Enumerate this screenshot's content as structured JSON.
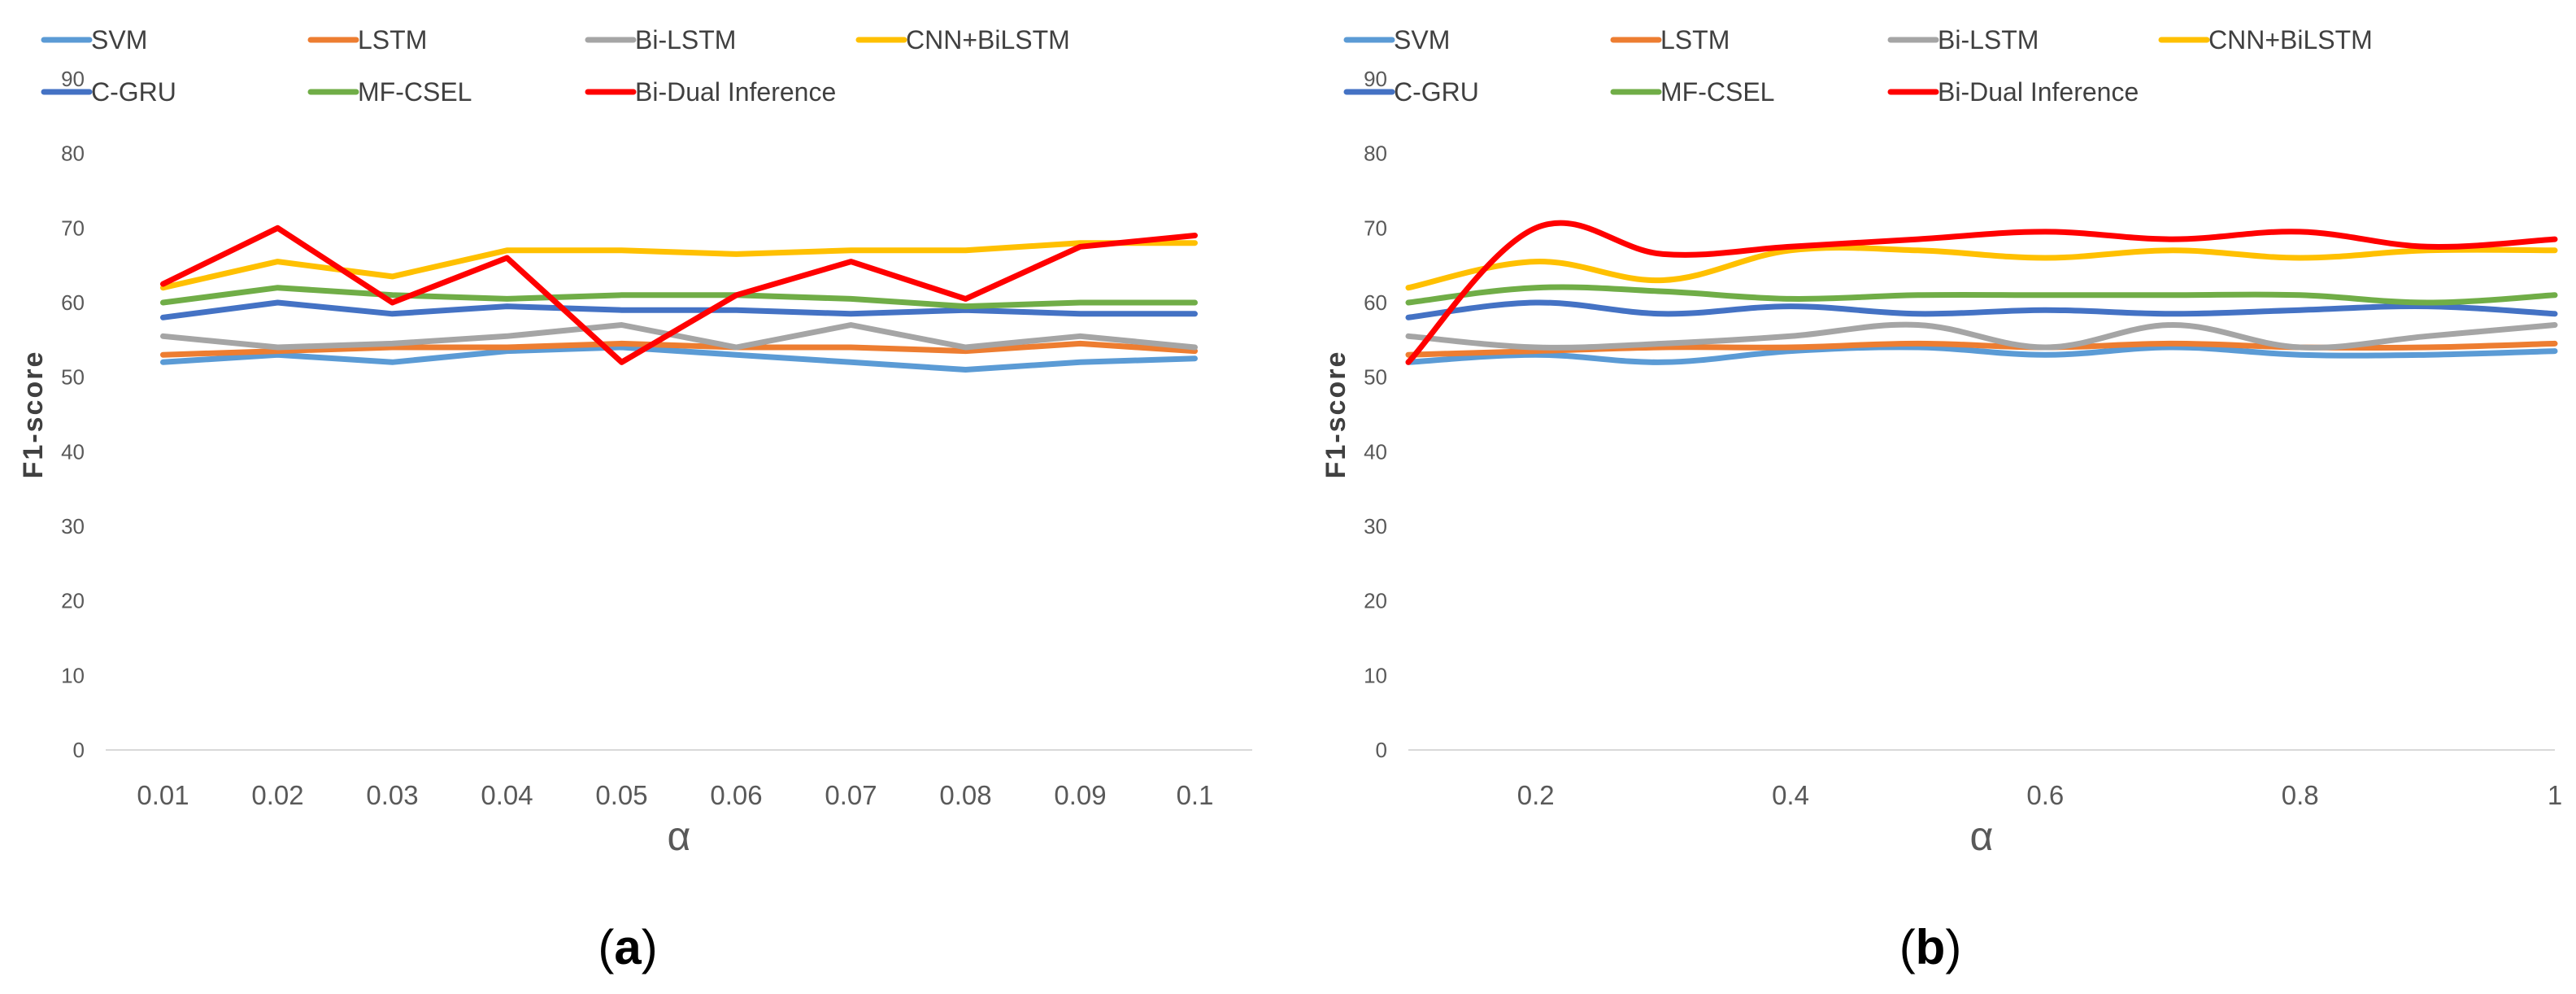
{
  "colors": {
    "SVM": "#5B9BD5",
    "LSTM": "#ED7D31",
    "Bi-LSTM": "#A5A5A5",
    "CNN+BiLSTM": "#FFC000",
    "C-GRU": "#4472C4",
    "MF-CSEL": "#70AD47",
    "Bi-Dual Inference": "#FF0000",
    "axis": "#D9D9D9",
    "tick_text": "#595959"
  },
  "chart_data": [
    {
      "type": "line",
      "id": "a",
      "caption": {
        "open": "(",
        "letter": "a",
        "close": ")"
      },
      "xlabel": "α",
      "ylabel": "F1-score",
      "ylim": [
        0,
        90
      ],
      "yticks": [
        0,
        10,
        20,
        30,
        40,
        50,
        60,
        70,
        80,
        90
      ],
      "curve": "straight",
      "legend_position": "top",
      "categories": [
        "0.01",
        "0.02",
        "0.03",
        "0.04",
        "0.05",
        "0.06",
        "0.07",
        "0.08",
        "0.09",
        "0.1"
      ],
      "series": [
        {
          "name": "SVM",
          "values": [
            52,
            53,
            52,
            53.5,
            54,
            53,
            52,
            51,
            52,
            52.5
          ]
        },
        {
          "name": "LSTM",
          "values": [
            53,
            53.5,
            54,
            54,
            54.5,
            54,
            54,
            53.5,
            54.5,
            53.5
          ]
        },
        {
          "name": "Bi-LSTM",
          "values": [
            55.5,
            54,
            54.5,
            55.5,
            57,
            54,
            57,
            54,
            55.5,
            54
          ]
        },
        {
          "name": "CNN+BiLSTM",
          "values": [
            62,
            65.5,
            63.5,
            67,
            67,
            66.5,
            67,
            67,
            68,
            68
          ]
        },
        {
          "name": "C-GRU",
          "values": [
            58,
            60,
            58.5,
            59.5,
            59,
            59,
            58.5,
            59,
            58.5,
            58.5
          ]
        },
        {
          "name": "MF-CSEL",
          "values": [
            60,
            62,
            61,
            60.5,
            61,
            61,
            60.5,
            59.5,
            60,
            60
          ]
        },
        {
          "name": "Bi-Dual Inference",
          "values": [
            62.5,
            70,
            60,
            66,
            52,
            61,
            65.5,
            60.5,
            67.5,
            69
          ]
        }
      ]
    },
    {
      "type": "line",
      "id": "b",
      "caption": {
        "open": "(",
        "letter": "b",
        "close": ")"
      },
      "xlabel": "α",
      "ylabel": "F1-score",
      "ylim": [
        0,
        90
      ],
      "yticks": [
        0,
        10,
        20,
        30,
        40,
        50,
        60,
        70,
        80,
        90
      ],
      "xlim": [
        0.1,
        1.0
      ],
      "xticks": [
        "0.2",
        "0.4",
        "0.6",
        "0.8",
        "1"
      ],
      "curve": "smooth",
      "legend_position": "top",
      "x": [
        0.1,
        0.2,
        0.3,
        0.4,
        0.5,
        0.6,
        0.7,
        0.8,
        0.9,
        1.0
      ],
      "series": [
        {
          "name": "SVM",
          "values": [
            52,
            53,
            52,
            53.5,
            54,
            53,
            54,
            53,
            53,
            53.5
          ]
        },
        {
          "name": "LSTM",
          "values": [
            53,
            53.5,
            54,
            54,
            54.5,
            54,
            54.5,
            54,
            54,
            54.5
          ]
        },
        {
          "name": "Bi-LSTM",
          "values": [
            55.5,
            54,
            54.5,
            55.5,
            57,
            54,
            57,
            54,
            55.5,
            57
          ]
        },
        {
          "name": "CNN+BiLSTM",
          "values": [
            62,
            65.5,
            63,
            67,
            67,
            66,
            67,
            66,
            67,
            67
          ]
        },
        {
          "name": "C-GRU",
          "values": [
            58,
            60,
            58.5,
            59.5,
            58.5,
            59,
            58.5,
            59,
            59.5,
            58.5
          ]
        },
        {
          "name": "MF-CSEL",
          "values": [
            60,
            62,
            61.5,
            60.5,
            61,
            61,
            61,
            61,
            60,
            61
          ]
        },
        {
          "name": "Bi-Dual Inference",
          "values": [
            52,
            70,
            66.5,
            67.5,
            68.5,
            69.5,
            68.5,
            69.5,
            67.5,
            68.5
          ]
        }
      ]
    }
  ]
}
